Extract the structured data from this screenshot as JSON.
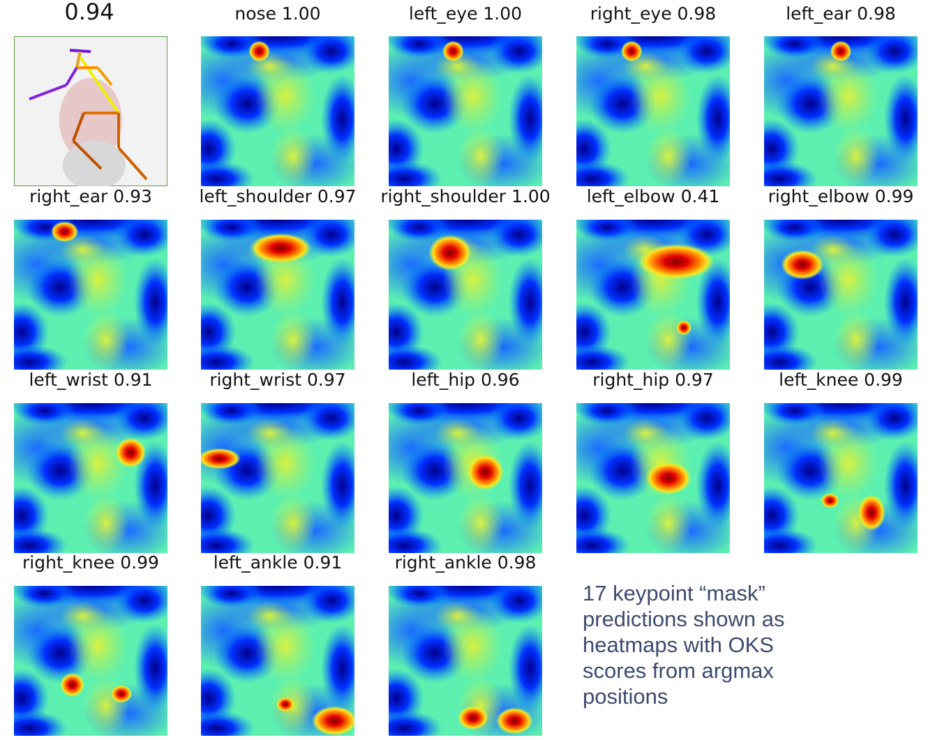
{
  "score": "0.94",
  "panels": [
    "nose 1.00",
    "left_eye 1.00",
    "right_eye 0.98",
    "left_ear 0.98",
    "right_ear 0.93",
    "left_shoulder 0.97",
    "right_shoulder 1.00",
    "left_elbow 0.41",
    "right_elbow 0.99",
    "left_wrist 0.91",
    "right_wrist 0.97",
    "left_hip 0.96",
    "right_hip 0.97",
    "left_knee 0.99",
    "right_knee 0.99",
    "left_ankle 0.91",
    "right_ankle 0.98"
  ],
  "caption": "17 keypoint “mask” predictions shown as heatmaps with OKS scores from argmax positions"
}
